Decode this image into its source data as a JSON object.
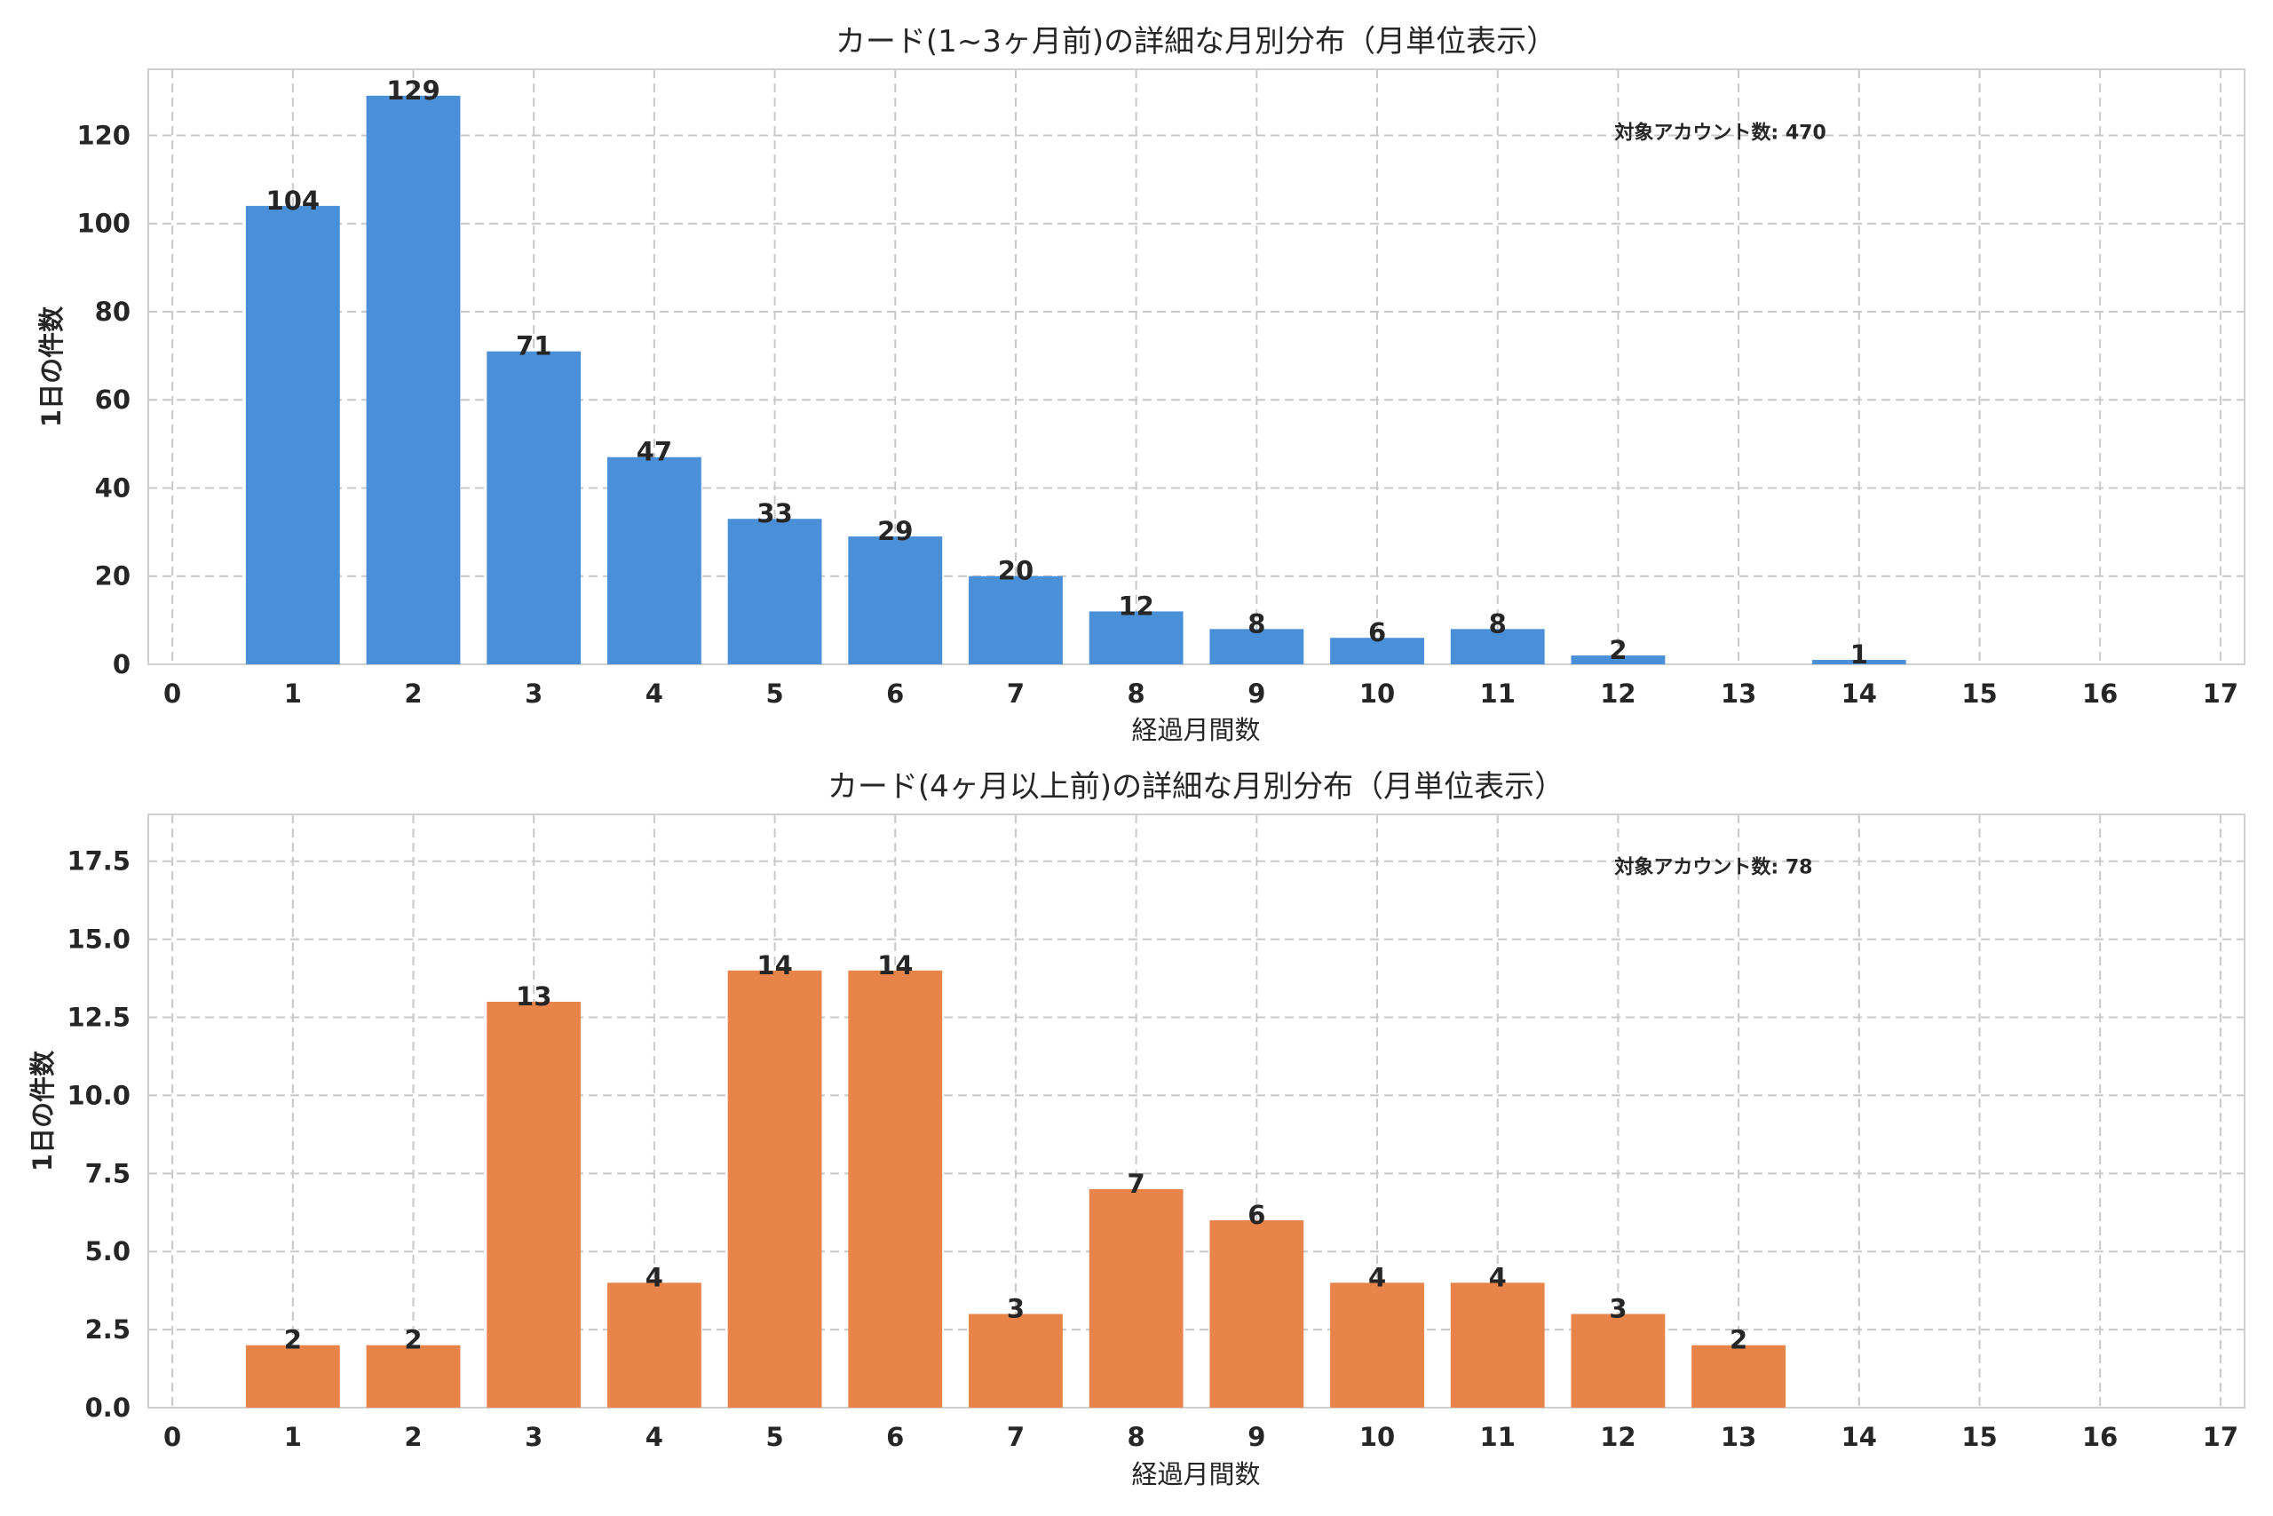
{
  "colors": {
    "series1": "#4a90d9",
    "series2": "#e8844a"
  },
  "chart_data": [
    {
      "type": "bar",
      "title": "カード(1~3ヶ月前)の詳細な月別分布（月単位表示）",
      "xlabel": "経過月間数",
      "ylabel": "1日の件数",
      "x": [
        1,
        2,
        3,
        4,
        5,
        6,
        7,
        8,
        9,
        10,
        11,
        12,
        14
      ],
      "values": [
        104,
        129,
        71,
        47,
        33,
        29,
        20,
        12,
        8,
        6,
        8,
        2,
        1
      ],
      "value_labels": [
        "104",
        "129",
        "71",
        "47",
        "33",
        "29",
        "20",
        "12",
        "8",
        "6",
        "8",
        "2",
        "1"
      ],
      "xlim": [
        -0.2,
        17.2
      ],
      "ylim": [
        0,
        135
      ],
      "xticks": [
        0,
        1,
        2,
        3,
        4,
        5,
        6,
        7,
        8,
        9,
        10,
        11,
        12,
        13,
        14,
        15,
        16,
        17
      ],
      "xtick_labels": [
        "0",
        "1",
        "2",
        "3",
        "4",
        "5",
        "6",
        "7",
        "8",
        "9",
        "10",
        "11",
        "12",
        "13",
        "14",
        "15",
        "16",
        "17"
      ],
      "yticks": [
        0,
        20,
        40,
        60,
        80,
        100,
        120
      ],
      "ytick_labels": [
        "0",
        "20",
        "40",
        "60",
        "80",
        "100",
        "120"
      ],
      "annotation": "対象アカウント数: 470",
      "annotation_at": [
        12,
        122
      ],
      "grid": true
    },
    {
      "type": "bar",
      "title": "カード(4ヶ月以上前)の詳細な月別分布（月単位表示）",
      "xlabel": "経過月間数",
      "ylabel": "1日の件数",
      "x": [
        1,
        2,
        3,
        4,
        5,
        6,
        7,
        8,
        9,
        10,
        11,
        12,
        13
      ],
      "values": [
        2,
        2,
        13,
        4,
        14,
        14,
        3,
        7,
        6,
        4,
        4,
        3,
        2
      ],
      "value_labels": [
        "2",
        "2",
        "13",
        "4",
        "14",
        "14",
        "3",
        "7",
        "6",
        "4",
        "4",
        "3",
        "2"
      ],
      "xlim": [
        -0.2,
        17.2
      ],
      "ylim": [
        0,
        19
      ],
      "xticks": [
        0,
        1,
        2,
        3,
        4,
        5,
        6,
        7,
        8,
        9,
        10,
        11,
        12,
        13,
        14,
        15,
        16,
        17
      ],
      "xtick_labels": [
        "0",
        "1",
        "2",
        "3",
        "4",
        "5",
        "6",
        "7",
        "8",
        "9",
        "10",
        "11",
        "12",
        "13",
        "14",
        "15",
        "16",
        "17"
      ],
      "yticks": [
        0,
        2.5,
        5,
        7.5,
        10,
        12.5,
        15,
        17.5
      ],
      "ytick_labels": [
        "0.0",
        "2.5",
        "5.0",
        "7.5",
        "10.0",
        "12.5",
        "15.0",
        "17.5"
      ],
      "annotation": "対象アカウント数: 78",
      "annotation_at": [
        12,
        17.5
      ],
      "grid": true
    }
  ]
}
